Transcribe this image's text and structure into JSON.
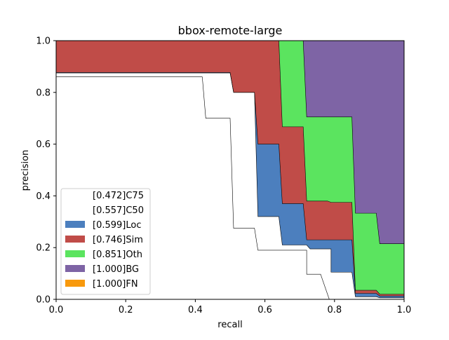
{
  "chart_data": {
    "type": "area",
    "title": "bbox-remote-large",
    "xlabel": "recall",
    "ylabel": "precision",
    "xlim": [
      0,
      1
    ],
    "ylim": [
      0,
      1
    ],
    "x_ticks": [
      "0.0",
      "0.2",
      "0.4",
      "0.6",
      "0.8",
      "1.0"
    ],
    "y_ticks": [
      "0.0",
      "0.2",
      "0.4",
      "0.6",
      "0.8",
      "1.0"
    ],
    "grid": false,
    "legend_position": "lower-left",
    "series": [
      {
        "name": "[0.472]C75",
        "fill": "#ffffff",
        "points": [
          [
            0,
            0.86
          ],
          [
            0.42,
            0.86
          ],
          [
            0.43,
            0.7
          ],
          [
            0.5,
            0.7
          ],
          [
            0.51,
            0.275
          ],
          [
            0.57,
            0.275
          ],
          [
            0.58,
            0.19
          ],
          [
            0.72,
            0.19
          ],
          [
            0.72,
            0.097
          ],
          [
            0.76,
            0.097
          ],
          [
            0.785,
            0
          ]
        ]
      },
      {
        "name": "[0.557]C50",
        "fill": "#ffffff",
        "points": [
          [
            0,
            0.875
          ],
          [
            0.5,
            0.875
          ],
          [
            0.51,
            0.8
          ],
          [
            0.57,
            0.8
          ],
          [
            0.58,
            0.32
          ],
          [
            0.64,
            0.32
          ],
          [
            0.65,
            0.21
          ],
          [
            0.72,
            0.21
          ],
          [
            0.73,
            0.195
          ],
          [
            0.79,
            0.195
          ],
          [
            0.79,
            0.105
          ],
          [
            0.85,
            0.105
          ],
          [
            0.86,
            0.01
          ],
          [
            0.92,
            0.01
          ],
          [
            0.93,
            0.006
          ],
          [
            1.0,
            0.006
          ]
        ]
      },
      {
        "name": "[0.599]Loc",
        "fill": "#4c7fbe",
        "points": [
          [
            0,
            0.877
          ],
          [
            0.5,
            0.877
          ],
          [
            0.51,
            0.8
          ],
          [
            0.57,
            0.8
          ],
          [
            0.58,
            0.6
          ],
          [
            0.64,
            0.6
          ],
          [
            0.65,
            0.37
          ],
          [
            0.71,
            0.37
          ],
          [
            0.72,
            0.23
          ],
          [
            0.85,
            0.23
          ],
          [
            0.86,
            0.023
          ],
          [
            0.92,
            0.023
          ],
          [
            0.93,
            0.013
          ],
          [
            1.0,
            0.013
          ]
        ]
      },
      {
        "name": "[0.746]Sim",
        "fill": "#c04c48",
        "points": [
          [
            0,
            1.0
          ],
          [
            0.64,
            1.0
          ],
          [
            0.65,
            0.667
          ],
          [
            0.71,
            0.667
          ],
          [
            0.72,
            0.38
          ],
          [
            0.78,
            0.38
          ],
          [
            0.79,
            0.375
          ],
          [
            0.85,
            0.375
          ],
          [
            0.86,
            0.035
          ],
          [
            0.92,
            0.035
          ],
          [
            0.93,
            0.02
          ],
          [
            1.0,
            0.02
          ]
        ]
      },
      {
        "name": "[0.851]Oth",
        "fill": "#5be45f",
        "points": [
          [
            0,
            1.0
          ],
          [
            0.71,
            1.0
          ],
          [
            0.72,
            0.705
          ],
          [
            0.85,
            0.705
          ],
          [
            0.86,
            0.333
          ],
          [
            0.92,
            0.333
          ],
          [
            0.93,
            0.215
          ],
          [
            1.0,
            0.215
          ]
        ]
      },
      {
        "name": "[1.000]BG",
        "fill": "#7e64a5",
        "points": [
          [
            0,
            1.0
          ],
          [
            1.0,
            1.0
          ]
        ]
      },
      {
        "name": "[1.000]FN",
        "fill": "#f8990c",
        "points": [
          [
            0,
            1.0
          ],
          [
            1.0,
            1.0
          ]
        ]
      }
    ]
  }
}
